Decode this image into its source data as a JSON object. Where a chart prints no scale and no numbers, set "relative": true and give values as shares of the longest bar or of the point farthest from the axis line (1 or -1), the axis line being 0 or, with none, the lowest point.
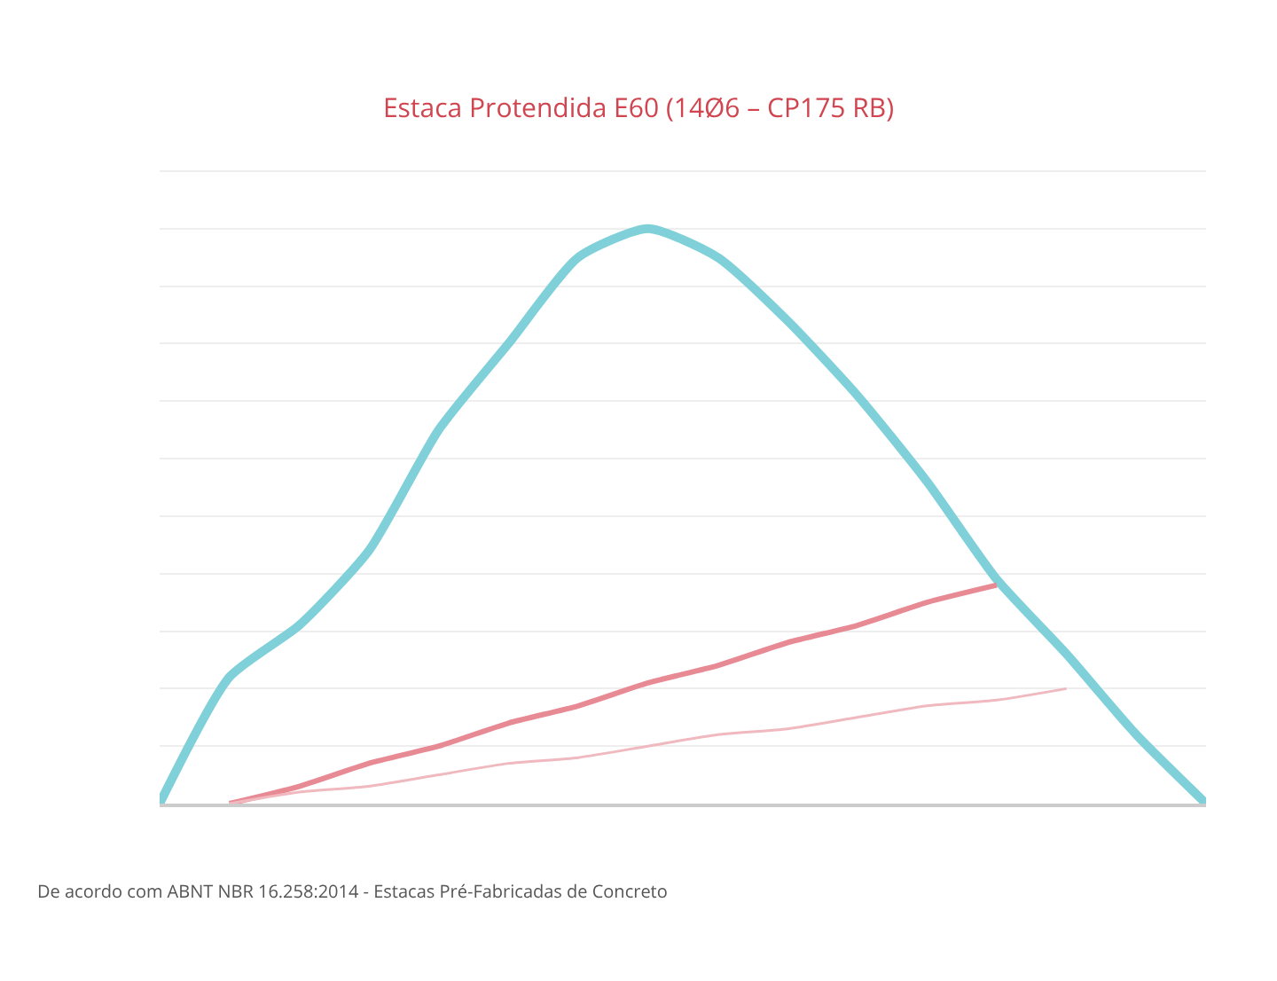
{
  "chart_data": {
    "type": "line",
    "title": "Estaca Protendida E60 (14Ø6 – CP175 RB)",
    "relative": true,
    "grid": true,
    "marker": "none",
    "line_style": "solid",
    "annotations": [
      "De acordo com ABNT NBR 16.258:2014 - Estacas Pré-Fabricadas de Concreto"
    ],
    "categories": [
      null,
      null,
      null,
      null,
      null,
      null,
      null,
      null,
      null,
      null,
      null,
      null,
      null,
      null,
      null,
      null
    ],
    "series": [
      {
        "color": "#7fd0d8",
        "values": [
          0,
          0.22,
          0.31,
          0.44,
          0.65,
          0.8,
          0.95,
          1,
          0.95,
          0.84,
          0.71,
          0.56,
          0.39,
          0.26,
          0.12,
          0
        ]
      },
      {
        "color": "#e88a94",
        "values": [
          null,
          0,
          0.03,
          0.07,
          0.1,
          0.14,
          0.17,
          0.21,
          0.24,
          0.28,
          0.31,
          0.35,
          0.38,
          null,
          null,
          null
        ]
      },
      {
        "color": "#f0b8bf",
        "values": [
          null,
          0,
          0.02,
          0.03,
          0.05,
          0.07,
          0.08,
          0.1,
          0.12,
          0.13,
          0.15,
          0.17,
          0.18,
          0.2,
          null,
          null
        ]
      }
    ]
  }
}
